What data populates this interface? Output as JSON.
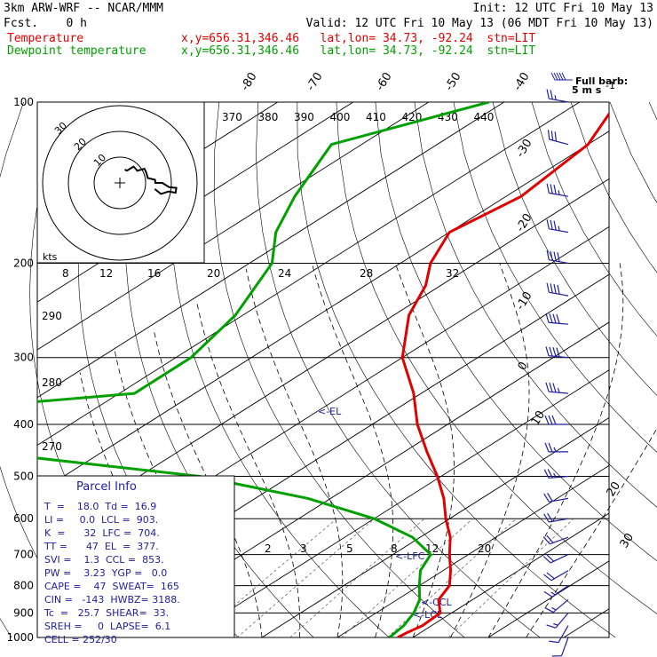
{
  "header": {
    "model": "3km ARW-WRF -- NCAR/MMM",
    "init": "Init: 12 UTC Fri 10 May 13",
    "fcst": "Fcst.    0 h",
    "valid": "Valid: 12 UTC Fri 10 May 13 (06 MDT Fri 10 May 13)",
    "temp_label": "Temperature",
    "temp_loc": "x,y=656.31,346.46   lat,lon= 34.73, -92.24  stn=LIT",
    "dew_label": "Dewpoint temperature",
    "dew_loc": "x,y=656.31,346.46   lat,lon= 34.73, -92.24  stn=LIT"
  },
  "barb_legend": {
    "line1": "Full barb:",
    "line2": "5 m s",
    "exp": "-1"
  },
  "hodograph": {
    "units": "kts",
    "ring_labels": [
      "30",
      "20",
      "10"
    ]
  },
  "parcel_info": {
    "title": "Parcel Info",
    "rows": [
      "T  =    18.0  Td =  16.9",
      "LI =     0.0  LCL =  903.",
      "K  =      32  LFC =  704.",
      "TT =      47  EL  =  377.",
      "SVI =    1.3  CCL =  853.",
      "PW =    3.23  YGP =   0.0",
      "CAPE =    47  SWEAT=  165",
      "CIN =   -143  HWBZ= 3188.",
      "Tc  =   25.7  SHEAR=  33.",
      "SREH =     0  LAPSE=  6.1",
      "CELL = 252/30"
    ]
  },
  "level_markers": {
    "el": "<-EL",
    "lfc": "<-LFC",
    "ccl": "<-CCL",
    "lcl": "<-LCL"
  },
  "chart_data": {
    "type": "line",
    "title": "",
    "xlabel": "",
    "ylabel": "",
    "y_axis": {
      "scale": "log",
      "ticks": [
        100,
        200,
        300,
        400,
        500,
        600,
        700,
        800,
        900,
        1000
      ]
    },
    "isotherm_labels": [
      "-80",
      "-70",
      "-60",
      "-50",
      "-40",
      "-30",
      "-20",
      "-10",
      "0",
      "10",
      "20",
      "30",
      "40"
    ],
    "theta_e_labels": [
      "370",
      "380",
      "390",
      "400",
      "410",
      "420",
      "430",
      "440"
    ],
    "mixing_ratio_labels_upper": [
      "8",
      "12",
      "16",
      "20",
      "24",
      "28",
      "32"
    ],
    "theta_labels": [
      "290",
      "280",
      "270"
    ],
    "mixing_ratio_labels_lower": [
      "2",
      "3",
      "5",
      "8",
      "12",
      "20"
    ],
    "series": [
      {
        "name": "Temperature",
        "color": "#e00000",
        "points": [
          [
            100,
            -65
          ],
          [
            120,
            -60
          ],
          [
            150,
            -58
          ],
          [
            175,
            -60
          ],
          [
            200,
            -56
          ],
          [
            220,
            -52
          ],
          [
            250,
            -48
          ],
          [
            300,
            -40
          ],
          [
            350,
            -31
          ],
          [
            400,
            -24
          ],
          [
            450,
            -17
          ],
          [
            500,
            -10.5
          ],
          [
            550,
            -5
          ],
          [
            600,
            -0.5
          ],
          [
            650,
            4
          ],
          [
            700,
            7.5
          ],
          [
            750,
            11
          ],
          [
            800,
            14
          ],
          [
            850,
            15.5
          ],
          [
            900,
            18.5
          ],
          [
            950,
            18.8
          ],
          [
            980,
            18.2
          ],
          [
            1000,
            18
          ]
        ]
      },
      {
        "name": "Dewpoint temperature",
        "color": "#00a000",
        "points": [
          [
            100,
            -82
          ],
          [
            120,
            -94
          ],
          [
            150,
            -88
          ],
          [
            175,
            -83
          ],
          [
            200,
            -77
          ],
          [
            250,
            -71
          ],
          [
            300,
            -68
          ],
          [
            350,
            -68
          ],
          [
            400,
            -110
          ],
          [
            450,
            -76
          ],
          [
            500,
            -42
          ],
          [
            550,
            -23
          ],
          [
            600,
            -10
          ],
          [
            650,
            -1
          ],
          [
            700,
            5
          ],
          [
            750,
            7
          ],
          [
            800,
            10
          ],
          [
            850,
            13
          ],
          [
            900,
            15
          ],
          [
            950,
            16.3
          ],
          [
            1000,
            16.9
          ]
        ]
      }
    ]
  },
  "wind_barbs": [
    [
      100,
      280,
      25
    ],
    [
      120,
      285,
      30
    ],
    [
      150,
      280,
      35
    ],
    [
      175,
      280,
      35
    ],
    [
      200,
      280,
      40
    ],
    [
      230,
      280,
      40
    ],
    [
      260,
      275,
      40
    ],
    [
      300,
      275,
      40
    ],
    [
      350,
      275,
      35
    ],
    [
      400,
      270,
      30
    ],
    [
      450,
      270,
      25
    ],
    [
      500,
      265,
      25
    ],
    [
      550,
      260,
      20
    ],
    [
      600,
      260,
      20
    ],
    [
      650,
      250,
      20
    ],
    [
      700,
      245,
      20
    ],
    [
      750,
      240,
      20
    ],
    [
      800,
      235,
      15
    ],
    [
      850,
      230,
      15
    ],
    [
      900,
      220,
      15
    ],
    [
      950,
      210,
      10
    ],
    [
      1000,
      200,
      10
    ]
  ]
}
